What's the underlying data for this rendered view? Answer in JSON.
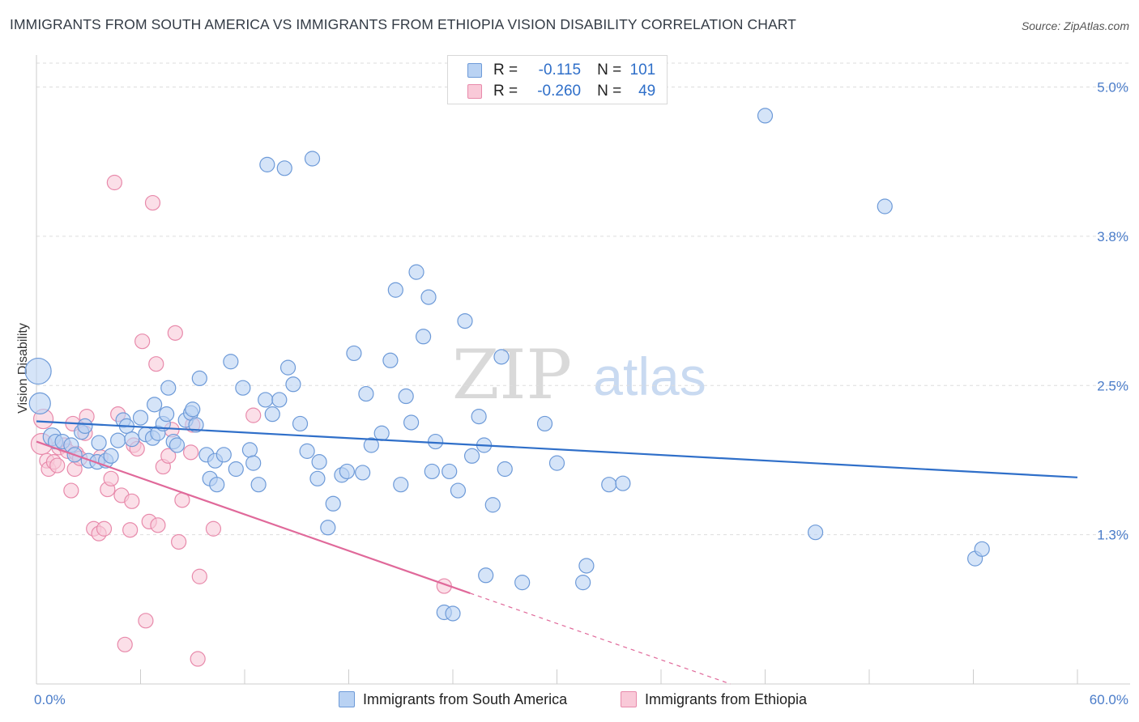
{
  "title": "IMMIGRANTS FROM SOUTH AMERICA VS IMMIGRANTS FROM ETHIOPIA VISION DISABILITY CORRELATION CHART",
  "source": "Source: ZipAtlas.com",
  "watermark": {
    "zip": "ZIP",
    "atlas": "atlas"
  },
  "legend": {
    "r_label": "R =",
    "n_label": "N =",
    "series1": {
      "r": "-0.115",
      "n": "101"
    },
    "series2": {
      "r": "-0.260",
      "n": "49"
    }
  },
  "bottom_legend": {
    "series1": "Immigrants from South America",
    "series2": "Immigrants from Ethiopia"
  },
  "colors": {
    "blue_fill": "#b9d2f3",
    "blue_stroke": "#6d9ad8",
    "blue_line": "#2f6fc9",
    "pink_fill": "#f9c9d8",
    "pink_stroke": "#e88aab",
    "pink_line": "#e0699a",
    "tick_text": "#4a7cc9",
    "grid": "#dddddd"
  },
  "chart_data": {
    "type": "scatter",
    "title": "IMMIGRANTS FROM SOUTH AMERICA VS IMMIGRANTS FROM ETHIOPIA VISION DISABILITY CORRELATION CHART",
    "xlabel": "",
    "ylabel": "Vision Disability",
    "xlim": [
      0,
      60
    ],
    "ylim": [
      0,
      5.2
    ],
    "x_tick_labels": [
      "0.0%",
      "60.0%"
    ],
    "y_ticks": [
      {
        "value": 1.25,
        "label": "1.3%"
      },
      {
        "value": 2.5,
        "label": "2.5%"
      },
      {
        "value": 3.75,
        "label": "3.8%"
      },
      {
        "value": 5.0,
        "label": "5.0%"
      }
    ],
    "series": [
      {
        "name": "Immigrants from South America",
        "r": -0.115,
        "n": 101,
        "trend": {
          "x0": 0,
          "y0": 2.2,
          "x1": 60,
          "y1": 1.73
        },
        "points": [
          [
            0.1,
            2.62,
            16
          ],
          [
            0.2,
            2.35,
            13
          ],
          [
            0.9,
            2.07,
            11
          ],
          [
            1.1,
            2.03,
            9
          ],
          [
            1.5,
            2.03,
            9
          ],
          [
            2.0,
            2.0,
            9
          ],
          [
            2.2,
            1.92,
            9
          ],
          [
            2.6,
            2.11,
            9
          ],
          [
            2.8,
            2.16,
            9
          ],
          [
            3.0,
            1.87,
            9
          ],
          [
            3.5,
            1.86,
            9
          ],
          [
            3.6,
            2.02,
            9
          ],
          [
            4.0,
            1.87,
            9
          ],
          [
            4.3,
            1.91,
            9
          ],
          [
            4.7,
            2.04,
            9
          ],
          [
            5.0,
            2.21,
            9
          ],
          [
            5.2,
            2.16,
            9
          ],
          [
            5.5,
            2.05,
            9
          ],
          [
            6.0,
            2.23,
            9
          ],
          [
            6.3,
            2.09,
            9
          ],
          [
            6.7,
            2.06,
            9
          ],
          [
            6.8,
            2.34,
            9
          ],
          [
            7.0,
            2.1,
            9
          ],
          [
            7.3,
            2.18,
            9
          ],
          [
            7.5,
            2.26,
            9
          ],
          [
            7.6,
            2.48,
            9
          ],
          [
            7.9,
            2.03,
            9
          ],
          [
            8.1,
            2.0,
            9
          ],
          [
            8.6,
            2.21,
            9
          ],
          [
            8.9,
            2.27,
            9
          ],
          [
            9.0,
            2.3,
            9
          ],
          [
            9.2,
            2.17,
            9
          ],
          [
            9.4,
            2.56,
            9
          ],
          [
            9.8,
            1.92,
            9
          ],
          [
            10.0,
            1.72,
            9
          ],
          [
            10.3,
            1.87,
            9
          ],
          [
            10.4,
            1.67,
            9
          ],
          [
            10.8,
            1.92,
            9
          ],
          [
            11.2,
            2.7,
            9
          ],
          [
            11.5,
            1.8,
            9
          ],
          [
            11.9,
            2.48,
            9
          ],
          [
            12.3,
            1.96,
            9
          ],
          [
            12.5,
            1.85,
            9
          ],
          [
            12.8,
            1.67,
            9
          ],
          [
            13.2,
            2.38,
            9
          ],
          [
            13.3,
            4.35,
            9
          ],
          [
            13.6,
            2.26,
            9
          ],
          [
            14.0,
            2.38,
            9
          ],
          [
            14.3,
            4.32,
            9
          ],
          [
            14.5,
            2.65,
            9
          ],
          [
            14.8,
            2.51,
            9
          ],
          [
            15.2,
            2.18,
            9
          ],
          [
            15.6,
            1.95,
            9
          ],
          [
            15.9,
            4.4,
            9
          ],
          [
            16.2,
            1.72,
            9
          ],
          [
            16.3,
            1.86,
            9
          ],
          [
            16.8,
            1.31,
            9
          ],
          [
            17.1,
            1.51,
            9
          ],
          [
            17.6,
            1.75,
            9
          ],
          [
            17.9,
            1.78,
            9
          ],
          [
            18.3,
            2.77,
            9
          ],
          [
            18.8,
            1.77,
            9
          ],
          [
            19.0,
            2.43,
            9
          ],
          [
            19.3,
            2.0,
            9
          ],
          [
            19.9,
            2.1,
            9
          ],
          [
            20.4,
            2.71,
            9
          ],
          [
            20.7,
            3.3,
            9
          ],
          [
            21.0,
            1.67,
            9
          ],
          [
            21.3,
            2.41,
            9
          ],
          [
            21.6,
            2.19,
            9
          ],
          [
            21.9,
            3.45,
            9
          ],
          [
            22.3,
            2.91,
            9
          ],
          [
            22.6,
            3.24,
            9
          ],
          [
            22.8,
            1.78,
            9
          ],
          [
            23.0,
            2.03,
            9
          ],
          [
            23.5,
            0.6,
            9
          ],
          [
            23.8,
            1.78,
            9
          ],
          [
            24.0,
            0.59,
            9
          ],
          [
            24.3,
            1.62,
            9
          ],
          [
            24.7,
            3.04,
            9
          ],
          [
            25.1,
            1.91,
            9
          ],
          [
            25.5,
            2.24,
            9
          ],
          [
            25.8,
            2.0,
            9
          ],
          [
            25.9,
            0.91,
            9
          ],
          [
            26.3,
            1.5,
            9
          ],
          [
            26.8,
            2.74,
            9
          ],
          [
            27.0,
            1.8,
            9
          ],
          [
            28.0,
            0.85,
            9
          ],
          [
            29.3,
            2.18,
            9
          ],
          [
            30.0,
            1.85,
            9
          ],
          [
            31.5,
            0.85,
            9
          ],
          [
            31.7,
            0.99,
            9
          ],
          [
            33.0,
            1.67,
            9
          ],
          [
            33.8,
            1.68,
            9
          ],
          [
            42.0,
            4.76,
            9
          ],
          [
            44.9,
            1.27,
            9
          ],
          [
            48.9,
            4.0,
            9
          ],
          [
            54.1,
            1.05,
            9
          ],
          [
            54.5,
            1.13,
            9
          ]
        ]
      },
      {
        "name": "Immigrants from Ethiopia",
        "r": -0.26,
        "n": 49,
        "trend": {
          "x0": 0,
          "y0": 2.03,
          "x1": 25.0,
          "y1": 0.76,
          "dash_to_x": 40,
          "dash_to_y": 0.0
        },
        "points": [
          [
            0.3,
            2.01,
            13
          ],
          [
            0.4,
            2.22,
            12
          ],
          [
            0.6,
            1.87,
            9
          ],
          [
            0.7,
            1.8,
            9
          ],
          [
            1.0,
            1.86,
            9
          ],
          [
            1.2,
            1.83,
            9
          ],
          [
            1.3,
            1.98,
            9
          ],
          [
            1.6,
            2.0,
            9
          ],
          [
            1.8,
            1.95,
            9
          ],
          [
            2.0,
            1.62,
            9
          ],
          [
            2.2,
            1.8,
            9
          ],
          [
            2.3,
            1.93,
            9
          ],
          [
            2.5,
            1.89,
            9
          ],
          [
            2.8,
            2.1,
            9
          ],
          [
            2.9,
            2.24,
            9
          ],
          [
            3.3,
            1.3,
            9
          ],
          [
            3.6,
            1.26,
            9
          ],
          [
            3.7,
            1.9,
            9
          ],
          [
            3.9,
            1.3,
            9
          ],
          [
            4.1,
            1.63,
            9
          ],
          [
            4.3,
            1.72,
            9
          ],
          [
            4.5,
            4.2,
            9
          ],
          [
            4.7,
            2.26,
            9
          ],
          [
            4.9,
            1.58,
            9
          ],
          [
            5.1,
            0.33,
            9
          ],
          [
            5.4,
            1.29,
            9
          ],
          [
            5.5,
            1.53,
            9
          ],
          [
            5.6,
            2.0,
            9
          ],
          [
            5.8,
            1.97,
            9
          ],
          [
            6.1,
            2.87,
            9
          ],
          [
            6.3,
            0.53,
            9
          ],
          [
            6.5,
            1.36,
            9
          ],
          [
            6.7,
            4.03,
            9
          ],
          [
            6.9,
            2.68,
            9
          ],
          [
            7.0,
            1.33,
            9
          ],
          [
            7.3,
            1.82,
            9
          ],
          [
            7.6,
            1.91,
            9
          ],
          [
            7.8,
            2.13,
            9
          ],
          [
            8.0,
            2.94,
            9
          ],
          [
            8.2,
            1.19,
            9
          ],
          [
            8.4,
            1.54,
            9
          ],
          [
            8.9,
            1.94,
            9
          ],
          [
            9.0,
            2.17,
            9
          ],
          [
            9.3,
            0.21,
            9
          ],
          [
            9.4,
            0.9,
            9
          ],
          [
            10.2,
            1.3,
            9
          ],
          [
            12.5,
            2.25,
            9
          ],
          [
            23.5,
            0.82,
            9
          ],
          [
            2.1,
            2.18,
            9
          ]
        ]
      }
    ]
  }
}
